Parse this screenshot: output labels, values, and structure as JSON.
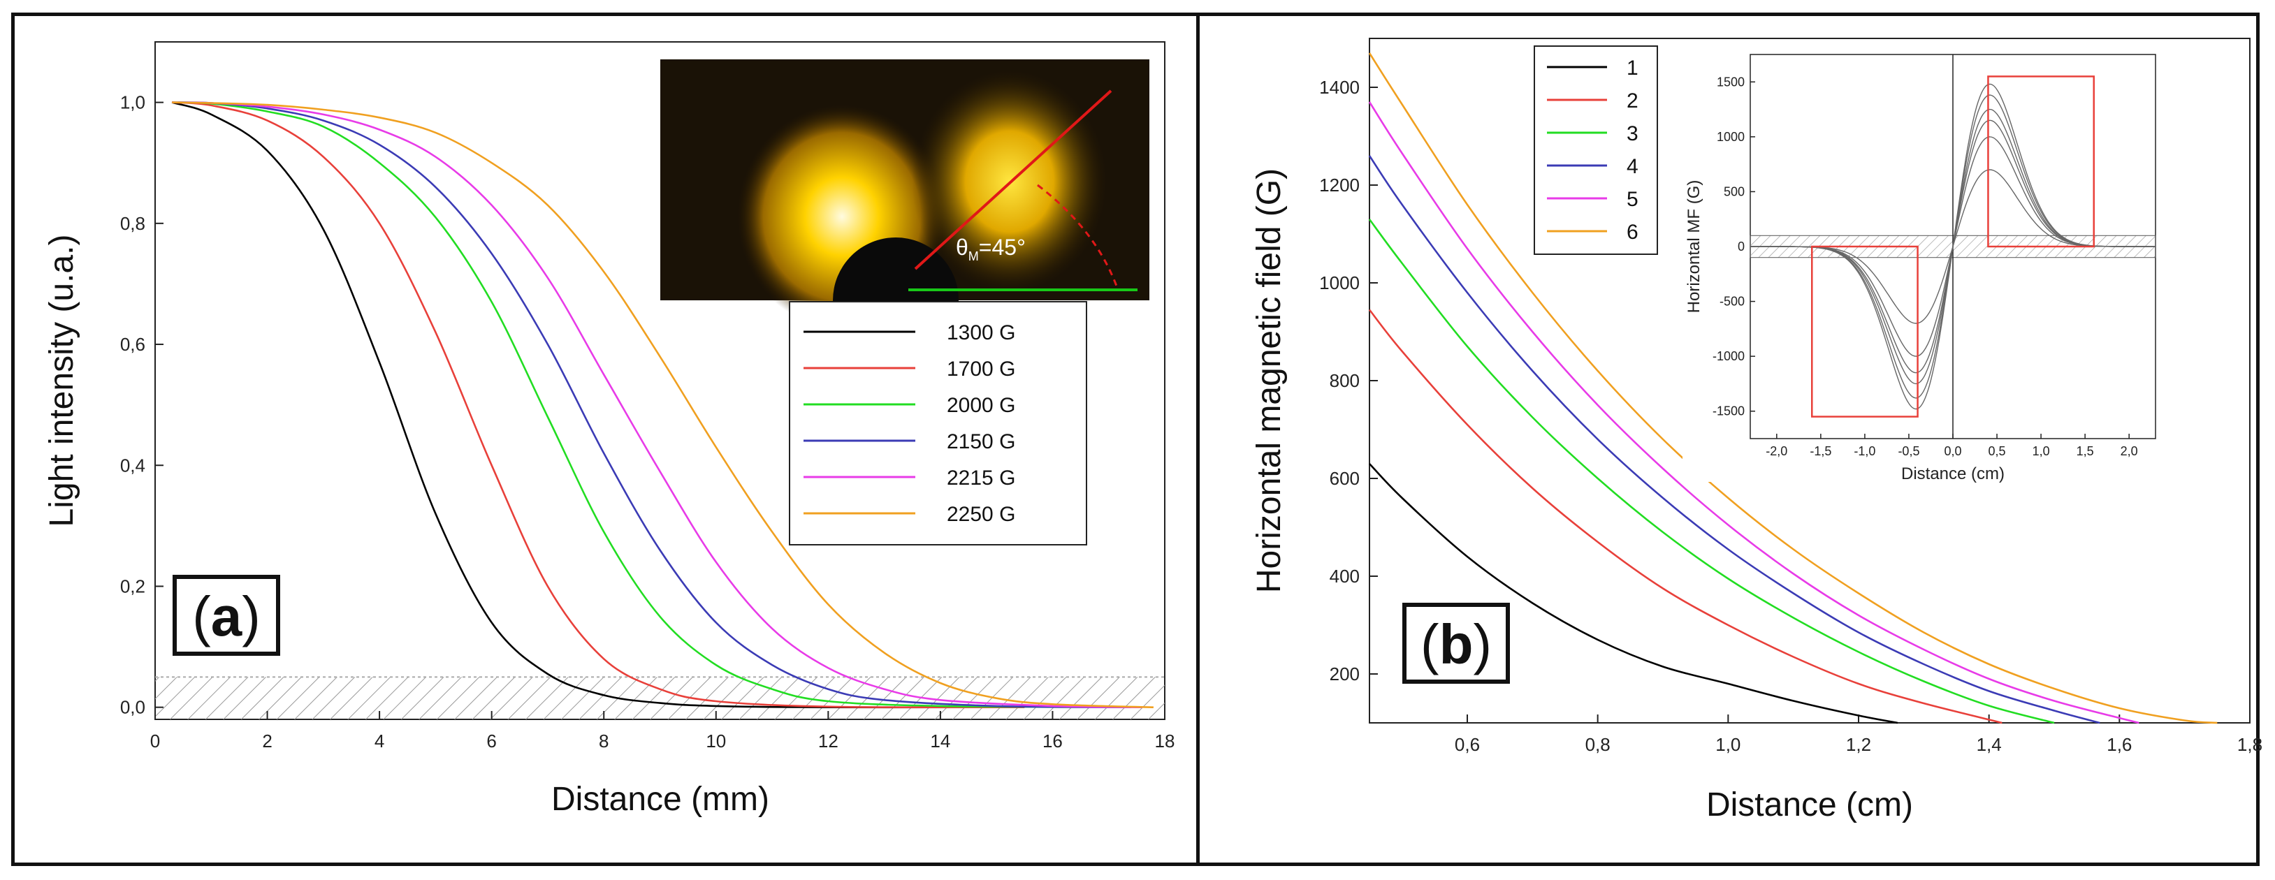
{
  "chart_data": [
    {
      "type": "line",
      "panel_label": "a",
      "xlabel": "Distance (mm)",
      "ylabel": "Light intensity (u.a.)",
      "xlim": [
        0,
        18
      ],
      "ylim": [
        -0.02,
        1.1
      ],
      "xticks": [
        "0",
        "2",
        "4",
        "6",
        "8",
        "10",
        "12",
        "14",
        "16",
        "18"
      ],
      "yticks": [
        "0,0",
        "0,2",
        "0,4",
        "0,6",
        "0,8",
        "1,0"
      ],
      "hatched_band": [
        -0.02,
        0.05
      ],
      "series": [
        {
          "name": "1300 G",
          "color": "#000000",
          "x0": 4.2,
          "end": 15,
          "points": [
            [
              0.3,
              1.0
            ],
            [
              1,
              0.98
            ],
            [
              2,
              0.92
            ],
            [
              3,
              0.79
            ],
            [
              4,
              0.57
            ],
            [
              5,
              0.32
            ],
            [
              6,
              0.14
            ],
            [
              7,
              0.055
            ],
            [
              8,
              0.02
            ],
            [
              9,
              0.007
            ],
            [
              10,
              0.002
            ],
            [
              12,
              0.0
            ],
            [
              15,
              0.0
            ]
          ]
        },
        {
          "name": "1700 G",
          "color": "#e8403a",
          "x0": 5.6,
          "end": 15.5,
          "points": [
            [
              0.3,
              1.0
            ],
            [
              1,
              0.995
            ],
            [
              2,
              0.97
            ],
            [
              3,
              0.91
            ],
            [
              4,
              0.8
            ],
            [
              5,
              0.62
            ],
            [
              6,
              0.4
            ],
            [
              7,
              0.2
            ],
            [
              8,
              0.08
            ],
            [
              9,
              0.03
            ],
            [
              10,
              0.01
            ],
            [
              12,
              0.001
            ],
            [
              15.5,
              0.0
            ]
          ]
        },
        {
          "name": "2000 G",
          "color": "#22dd22",
          "x0": 6.9,
          "end": 17.2,
          "points": [
            [
              0.3,
              1.0
            ],
            [
              1,
              0.998
            ],
            [
              2,
              0.985
            ],
            [
              3,
              0.96
            ],
            [
              4,
              0.9
            ],
            [
              5,
              0.81
            ],
            [
              6,
              0.67
            ],
            [
              7,
              0.48
            ],
            [
              8,
              0.29
            ],
            [
              9,
              0.15
            ],
            [
              10,
              0.07
            ],
            [
              11,
              0.03
            ],
            [
              12,
              0.01
            ],
            [
              14,
              0.002
            ],
            [
              17.2,
              0.0
            ]
          ]
        },
        {
          "name": "2150 G",
          "color": "#3b3bb5",
          "x0": 7.6,
          "end": 17.4,
          "points": [
            [
              0.3,
              1.0
            ],
            [
              1,
              0.999
            ],
            [
              2,
              0.99
            ],
            [
              3,
              0.97
            ],
            [
              4,
              0.93
            ],
            [
              5,
              0.86
            ],
            [
              6,
              0.75
            ],
            [
              7,
              0.6
            ],
            [
              8,
              0.42
            ],
            [
              9,
              0.26
            ],
            [
              10,
              0.14
            ],
            [
              11,
              0.07
            ],
            [
              12,
              0.03
            ],
            [
              13,
              0.012
            ],
            [
              15,
              0.002
            ],
            [
              17.4,
              0.0
            ]
          ]
        },
        {
          "name": "2215 G",
          "color": "#e83be8",
          "x0": 8.3,
          "end": 17.6,
          "points": [
            [
              0.3,
              1.0
            ],
            [
              1,
              0.999
            ],
            [
              2,
              0.993
            ],
            [
              3,
              0.98
            ],
            [
              4,
              0.955
            ],
            [
              5,
              0.91
            ],
            [
              6,
              0.83
            ],
            [
              7,
              0.71
            ],
            [
              8,
              0.55
            ],
            [
              9,
              0.39
            ],
            [
              10,
              0.24
            ],
            [
              11,
              0.13
            ],
            [
              12,
              0.065
            ],
            [
              13,
              0.03
            ],
            [
              14,
              0.012
            ],
            [
              16,
              0.002
            ],
            [
              17.6,
              0.0
            ]
          ]
        },
        {
          "name": "2250 G",
          "color": "#f0a020",
          "x0": 9.3,
          "end": 17.8,
          "points": [
            [
              0.3,
              1.0
            ],
            [
              1,
              0.999
            ],
            [
              2,
              0.996
            ],
            [
              3,
              0.988
            ],
            [
              4,
              0.975
            ],
            [
              5,
              0.95
            ],
            [
              6,
              0.9
            ],
            [
              7,
              0.83
            ],
            [
              8,
              0.72
            ],
            [
              9,
              0.58
            ],
            [
              10,
              0.43
            ],
            [
              11,
              0.29
            ],
            [
              12,
              0.17
            ],
            [
              13,
              0.09
            ],
            [
              14,
              0.04
            ],
            [
              15,
              0.015
            ],
            [
              16,
              0.005
            ],
            [
              17.8,
              0.0
            ]
          ]
        }
      ],
      "inset_photo": {
        "annotation": "θ",
        "subscript": "M",
        "value": "=45°"
      }
    },
    {
      "type": "line",
      "panel_label": "b",
      "xlabel": "Distance (cm)",
      "ylabel": "Horizontal magnetic field (G)",
      "xlim": [
        0.45,
        1.8
      ],
      "ylim": [
        100,
        1500
      ],
      "xticks": [
        "0,6",
        "0,8",
        "1,0",
        "1,2",
        "1,4",
        "1,6",
        "1,8"
      ],
      "yticks": [
        "200",
        "400",
        "600",
        "800",
        "1000",
        "1200",
        "1400"
      ],
      "series": [
        {
          "name": "1",
          "color": "#000000",
          "points": [
            [
              0.45,
              630
            ],
            [
              0.5,
              560
            ],
            [
              0.6,
              440
            ],
            [
              0.7,
              345
            ],
            [
              0.8,
              270
            ],
            [
              0.9,
              215
            ],
            [
              1.0,
              180
            ],
            [
              1.1,
              145
            ],
            [
              1.2,
              115
            ],
            [
              1.26,
              100
            ]
          ]
        },
        {
          "name": "2",
          "color": "#e8403a",
          "points": [
            [
              0.45,
              945
            ],
            [
              0.5,
              860
            ],
            [
              0.6,
              710
            ],
            [
              0.7,
              580
            ],
            [
              0.8,
              470
            ],
            [
              0.9,
              375
            ],
            [
              1.0,
              300
            ],
            [
              1.1,
              235
            ],
            [
              1.2,
              180
            ],
            [
              1.3,
              140
            ],
            [
              1.42,
              100
            ]
          ]
        },
        {
          "name": "3",
          "color": "#22dd22",
          "points": [
            [
              0.45,
              1130
            ],
            [
              0.5,
              1040
            ],
            [
              0.6,
              870
            ],
            [
              0.7,
              725
            ],
            [
              0.8,
              600
            ],
            [
              0.9,
              490
            ],
            [
              1.0,
              395
            ],
            [
              1.1,
              315
            ],
            [
              1.2,
              245
            ],
            [
              1.3,
              185
            ],
            [
              1.4,
              135
            ],
            [
              1.5,
              100
            ]
          ]
        },
        {
          "name": "4",
          "color": "#3b3bb5",
          "points": [
            [
              0.45,
              1260
            ],
            [
              0.5,
              1160
            ],
            [
              0.6,
              980
            ],
            [
              0.7,
              820
            ],
            [
              0.8,
              680
            ],
            [
              0.9,
              560
            ],
            [
              1.0,
              455
            ],
            [
              1.1,
              365
            ],
            [
              1.2,
              285
            ],
            [
              1.3,
              220
            ],
            [
              1.4,
              165
            ],
            [
              1.5,
              125
            ],
            [
              1.57,
              100
            ]
          ]
        },
        {
          "name": "5",
          "color": "#e83be8",
          "points": [
            [
              0.45,
              1370
            ],
            [
              0.5,
              1265
            ],
            [
              0.6,
              1070
            ],
            [
              0.7,
              900
            ],
            [
              0.8,
              750
            ],
            [
              0.9,
              620
            ],
            [
              1.0,
              505
            ],
            [
              1.1,
              405
            ],
            [
              1.2,
              320
            ],
            [
              1.3,
              250
            ],
            [
              1.4,
              190
            ],
            [
              1.5,
              145
            ],
            [
              1.6,
              110
            ],
            [
              1.63,
              100
            ]
          ]
        },
        {
          "name": "6",
          "color": "#f0a020",
          "points": [
            [
              0.45,
              1470
            ],
            [
              0.5,
              1365
            ],
            [
              0.6,
              1160
            ],
            [
              0.7,
              980
            ],
            [
              0.8,
              820
            ],
            [
              0.9,
              680
            ],
            [
              1.0,
              560
            ],
            [
              1.1,
              455
            ],
            [
              1.2,
              365
            ],
            [
              1.3,
              285
            ],
            [
              1.4,
              220
            ],
            [
              1.5,
              170
            ],
            [
              1.6,
              130
            ],
            [
              1.7,
              105
            ],
            [
              1.75,
              100
            ]
          ]
        }
      ],
      "inset": {
        "xlabel": "Distance (cm)",
        "ylabel": "Horizontal MF (G)",
        "xlim": [
          -2.3,
          2.3
        ],
        "ylim": [
          -1750,
          1750
        ],
        "xticks": [
          "-2,0",
          "-1,5",
          "-1,0",
          "-0,5",
          "0,0",
          "0,5",
          "1,0",
          "1,5",
          "2,0"
        ],
        "yticks": [
          "-1500",
          "-1000",
          "-500",
          "0",
          "500",
          "1000",
          "1500"
        ],
        "peak_amplitudes": [
          700,
          1000,
          1150,
          1250,
          1380,
          1480
        ],
        "rect_pos": {
          "x": [
            0.4,
            1.6
          ],
          "y": [
            0,
            1550
          ]
        },
        "rect_neg": {
          "x": [
            -1.6,
            -0.4
          ],
          "y": [
            -1550,
            0
          ]
        },
        "band": [
          -100,
          100
        ]
      }
    }
  ]
}
